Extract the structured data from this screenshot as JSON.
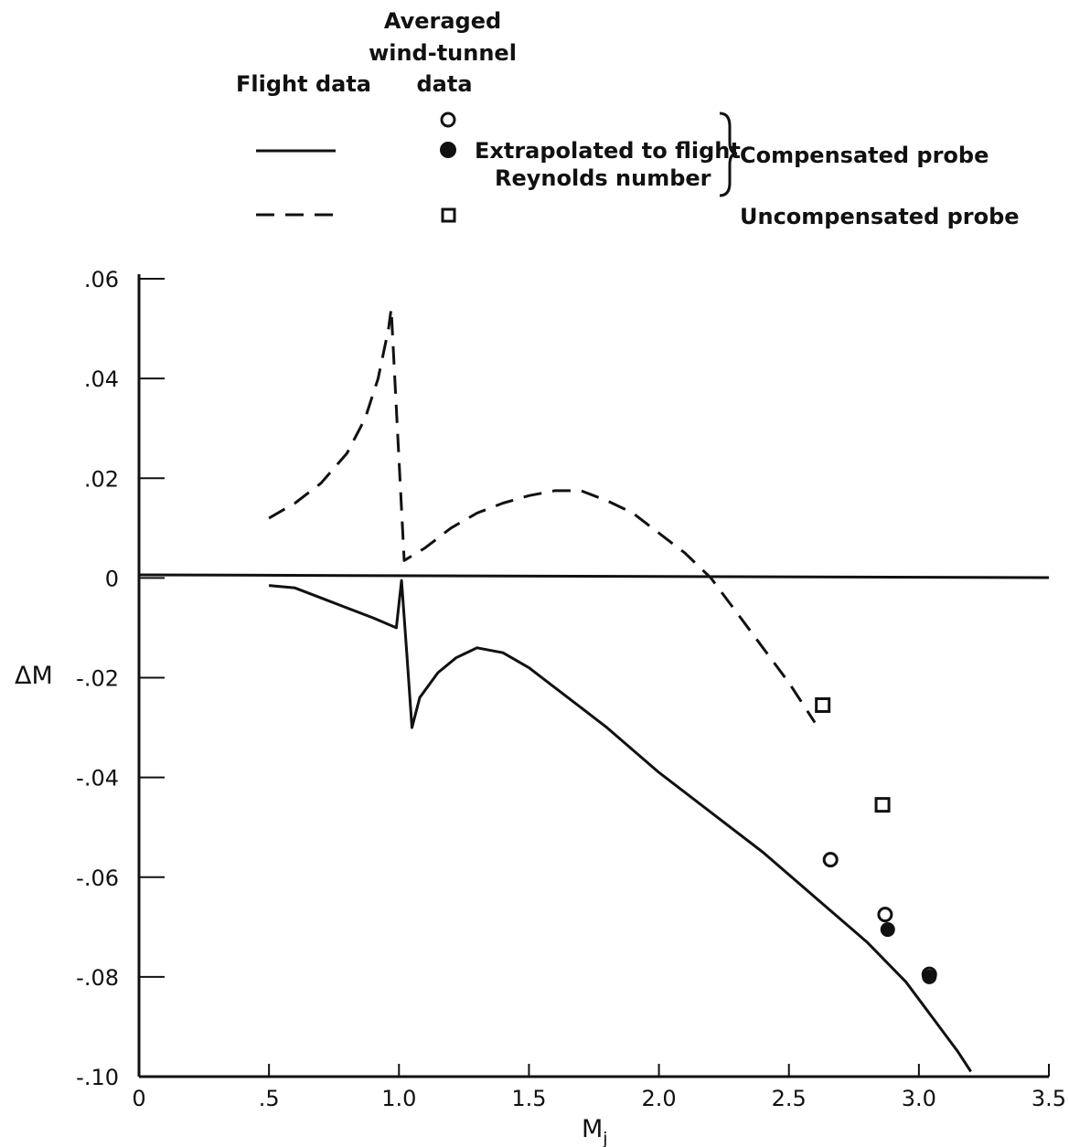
{
  "legend": {
    "header_flight": "Flight data",
    "header_tunnel_line1": "Averaged",
    "header_tunnel_line2": "wind-tunnel",
    "header_tunnel_line3": "data",
    "extrapolated_line1": "Extrapolated to flight",
    "extrapolated_line2": "Reynolds number",
    "compensated": "Compensated probe",
    "uncompensated": "Uncompensated probe"
  },
  "chart_data": {
    "type": "line",
    "title": "",
    "xlabel": "M",
    "xlabel_sub": "j",
    "ylabel": "ΔM",
    "xlim": [
      0,
      3.5
    ],
    "ylim": [
      -0.1,
      0.06
    ],
    "x_ticks": [
      0,
      0.5,
      1.0,
      1.5,
      2.0,
      2.5,
      3.0,
      3.5
    ],
    "x_tick_labels": [
      "0",
      ".5",
      "1.0",
      "1.5",
      "2.0",
      "2.5",
      "3.0",
      "3.5"
    ],
    "y_ticks": [
      0.06,
      0.04,
      0.02,
      0,
      -0.02,
      -0.04,
      -0.06,
      -0.08,
      -0.1
    ],
    "y_tick_labels": [
      ".06",
      ".04",
      ".02",
      "0",
      "-.02",
      "-.04",
      "-.06",
      "-.08",
      "-.10"
    ],
    "grid": false,
    "series": [
      {
        "name": "Flight data, compensated probe",
        "style": "solid",
        "points": [
          [
            0.5,
            -0.0015
          ],
          [
            0.6,
            -0.002
          ],
          [
            0.7,
            -0.004
          ],
          [
            0.8,
            -0.006
          ],
          [
            0.9,
            -0.008
          ],
          [
            0.99,
            -0.01
          ],
          [
            1.01,
            -0.0005
          ],
          [
            1.03,
            -0.015
          ],
          [
            1.05,
            -0.03
          ],
          [
            1.08,
            -0.024
          ],
          [
            1.15,
            -0.019
          ],
          [
            1.22,
            -0.016
          ],
          [
            1.3,
            -0.014
          ],
          [
            1.4,
            -0.015
          ],
          [
            1.5,
            -0.018
          ],
          [
            1.6,
            -0.022
          ],
          [
            1.7,
            -0.026
          ],
          [
            1.8,
            -0.03
          ],
          [
            2.0,
            -0.039
          ],
          [
            2.2,
            -0.047
          ],
          [
            2.4,
            -0.055
          ],
          [
            2.6,
            -0.064
          ],
          [
            2.8,
            -0.073
          ],
          [
            2.95,
            -0.081
          ],
          [
            3.05,
            -0.088
          ],
          [
            3.15,
            -0.095
          ],
          [
            3.2,
            -0.099
          ]
        ]
      },
      {
        "name": "Flight data, uncompensated probe",
        "style": "dashed",
        "points": [
          [
            0.5,
            0.012
          ],
          [
            0.6,
            0.015
          ],
          [
            0.7,
            0.019
          ],
          [
            0.8,
            0.025
          ],
          [
            0.87,
            0.032
          ],
          [
            0.92,
            0.04
          ],
          [
            0.96,
            0.05
          ],
          [
            0.97,
            0.054
          ],
          [
            1.02,
            0.0035
          ],
          [
            1.1,
            0.006
          ],
          [
            1.2,
            0.01
          ],
          [
            1.3,
            0.013
          ],
          [
            1.4,
            0.015
          ],
          [
            1.5,
            0.0165
          ],
          [
            1.6,
            0.0175
          ],
          [
            1.7,
            0.0175
          ],
          [
            1.8,
            0.0155
          ],
          [
            1.9,
            0.013
          ],
          [
            2.0,
            0.009
          ],
          [
            2.1,
            0.005
          ],
          [
            2.2,
            0.0
          ],
          [
            2.3,
            -0.007
          ],
          [
            2.4,
            -0.014
          ],
          [
            2.5,
            -0.021
          ],
          [
            2.6,
            -0.029
          ]
        ]
      }
    ],
    "markers": [
      {
        "name": "Averaged wind-tunnel data, compensated probe",
        "shape": "open-circle",
        "points": [
          [
            2.66,
            -0.0565
          ],
          [
            2.87,
            -0.0675
          ],
          [
            3.04,
            -0.0795
          ]
        ]
      },
      {
        "name": "Extrapolated to flight Reynolds number",
        "shape": "filled-circle",
        "points": [
          [
            2.88,
            -0.0705
          ],
          [
            3.04,
            -0.08
          ]
        ]
      },
      {
        "name": "Averaged wind-tunnel data, uncompensated probe",
        "shape": "open-square",
        "points": [
          [
            2.63,
            -0.0255
          ],
          [
            2.86,
            -0.0455
          ]
        ]
      }
    ]
  }
}
